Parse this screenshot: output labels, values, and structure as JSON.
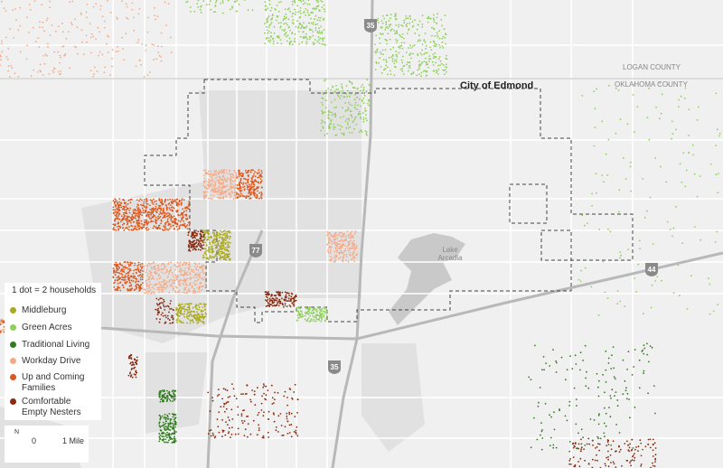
{
  "map": {
    "city_label": "City of Edmond",
    "counties": [
      "LOGAN COUNTY",
      "OKLAHOMA COUNTY"
    ],
    "lake_label": "Lake Arcadia",
    "highway_shields": [
      "35",
      "77",
      "35",
      "44"
    ],
    "legend": {
      "title": "1 dot = 2 households",
      "items": [
        {
          "name": "Middleburg",
          "color": "#a9aa1e"
        },
        {
          "name": "Green Acres",
          "color": "#8fd05a"
        },
        {
          "name": "Traditional Living",
          "color": "#2f7d1c"
        },
        {
          "name": "Workday Drive",
          "color": "#f6a985"
        },
        {
          "name": "Up and Coming Families",
          "color": "#df561b"
        },
        {
          "name": "Comfortable Empty Nesters",
          "color": "#8a2b10"
        }
      ]
    },
    "scale": {
      "north": "N",
      "start": "0",
      "end": "1 Mile"
    }
  }
}
